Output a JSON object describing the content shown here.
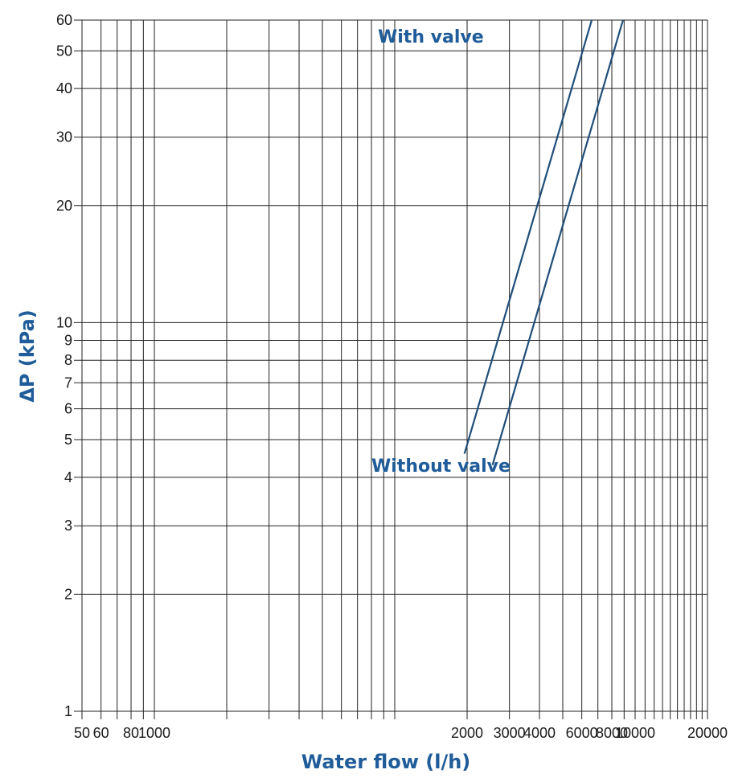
{
  "chart_data": {
    "type": "line",
    "xscale": "log",
    "yscale": "log",
    "xlim": [
      50,
      20000
    ],
    "ylim": [
      1,
      60
    ],
    "xlabel": "Water flow (l/h)",
    "ylabel": "ΔP (kPa)",
    "x_tick_labels": [
      "50",
      "60",
      "80",
      "1000",
      "2000",
      "3000",
      "4000",
      "6000",
      "8000",
      "10000",
      "20000"
    ],
    "y_tick_labels": [
      "1",
      "2",
      "3",
      "4",
      "5",
      "6",
      "7",
      "8",
      "9",
      "10",
      "20",
      "30",
      "40",
      "50",
      "60"
    ],
    "grid": true,
    "series": [
      {
        "name": "With valve",
        "x": [
          1950,
          6600
        ],
        "y": [
          4.6,
          60
        ]
      },
      {
        "name": "Without valve",
        "x": [
          2550,
          8900
        ],
        "y": [
          4.3,
          60
        ]
      }
    ],
    "colors": {
      "series": "#1f4e79",
      "text": "#1f5c99",
      "grid": "#222222"
    }
  }
}
